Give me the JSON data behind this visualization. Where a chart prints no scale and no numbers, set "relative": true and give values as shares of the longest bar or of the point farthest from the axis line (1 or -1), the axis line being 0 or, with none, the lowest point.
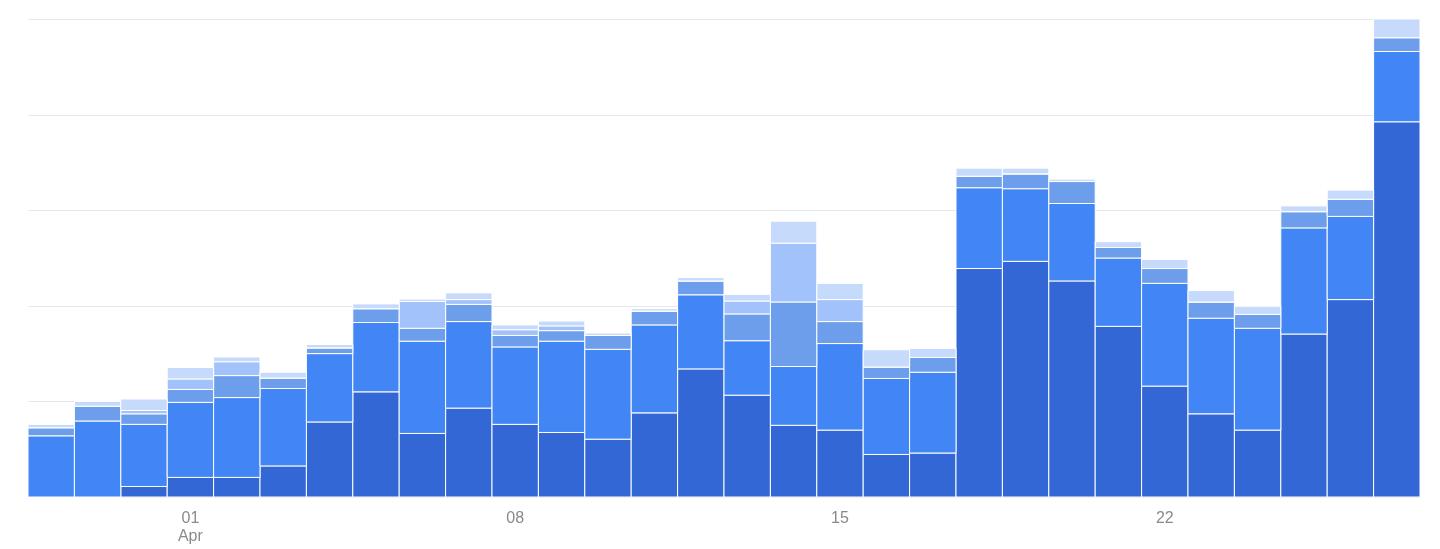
{
  "chart_data": {
    "type": "bar",
    "stacked": true,
    "relative": true,
    "grid": true,
    "categories": [
      null,
      null,
      null,
      "01\nApr",
      null,
      null,
      null,
      null,
      null,
      null,
      "08",
      null,
      null,
      null,
      null,
      null,
      null,
      "15",
      null,
      null,
      null,
      null,
      null,
      null,
      "22",
      null,
      null,
      null,
      null,
      null
    ],
    "series": [
      {
        "color": "#3367d6",
        "values": [
          0,
          0,
          0.022,
          0.041,
          0.041,
          0.065,
          0.157,
          0.22,
          0.133,
          0.186,
          0.152,
          0.135,
          0.121,
          0.176,
          0.268,
          0.213,
          0.15,
          0.14,
          0.089,
          0.092,
          0.478,
          0.493,
          0.452,
          0.357,
          0.232,
          0.174,
          0.14,
          0.341,
          0.413,
          0.785
        ]
      },
      {
        "color": "#4285f4",
        "values": [
          0.128,
          0.159,
          0.13,
          0.157,
          0.167,
          0.162,
          0.143,
          0.145,
          0.193,
          0.181,
          0.162,
          0.191,
          0.188,
          0.184,
          0.155,
          0.114,
          0.123,
          0.181,
          0.159,
          0.169,
          0.169,
          0.152,
          0.162,
          0.143,
          0.215,
          0.2,
          0.213,
          0.222,
          0.174,
          0.147
        ]
      },
      {
        "color": "#6d9eeb",
        "values": [
          0.017,
          0.031,
          0.022,
          0.027,
          0.046,
          0.022,
          0.012,
          0.029,
          0.027,
          0.036,
          0.024,
          0.022,
          0.029,
          0.029,
          0.029,
          0.056,
          0.135,
          0.046,
          0.024,
          0.031,
          0.024,
          0.031,
          0.046,
          0.022,
          0.031,
          0.034,
          0.029,
          0.034,
          0.036,
          0.029
        ]
      },
      {
        "color": "#a1c2fa",
        "values": [
          0,
          0,
          0.007,
          0.022,
          0.029,
          0,
          0,
          0,
          0.056,
          0.01,
          0.012,
          0.01,
          0,
          0,
          0,
          0.027,
          0.123,
          0.046,
          0,
          0,
          0,
          0,
          0,
          0,
          0,
          0,
          0,
          0,
          0,
          0
        ]
      },
      {
        "color": "#c6dafc",
        "values": [
          0.007,
          0.01,
          0.024,
          0.024,
          0.01,
          0.012,
          0.007,
          0.01,
          0.005,
          0.014,
          0.01,
          0.01,
          0.005,
          0.005,
          0.007,
          0.014,
          0.046,
          0.034,
          0.036,
          0.019,
          0.017,
          0.012,
          0.005,
          0.012,
          0.019,
          0.024,
          0.017,
          0.012,
          0.019,
          0.039
        ]
      }
    ]
  }
}
